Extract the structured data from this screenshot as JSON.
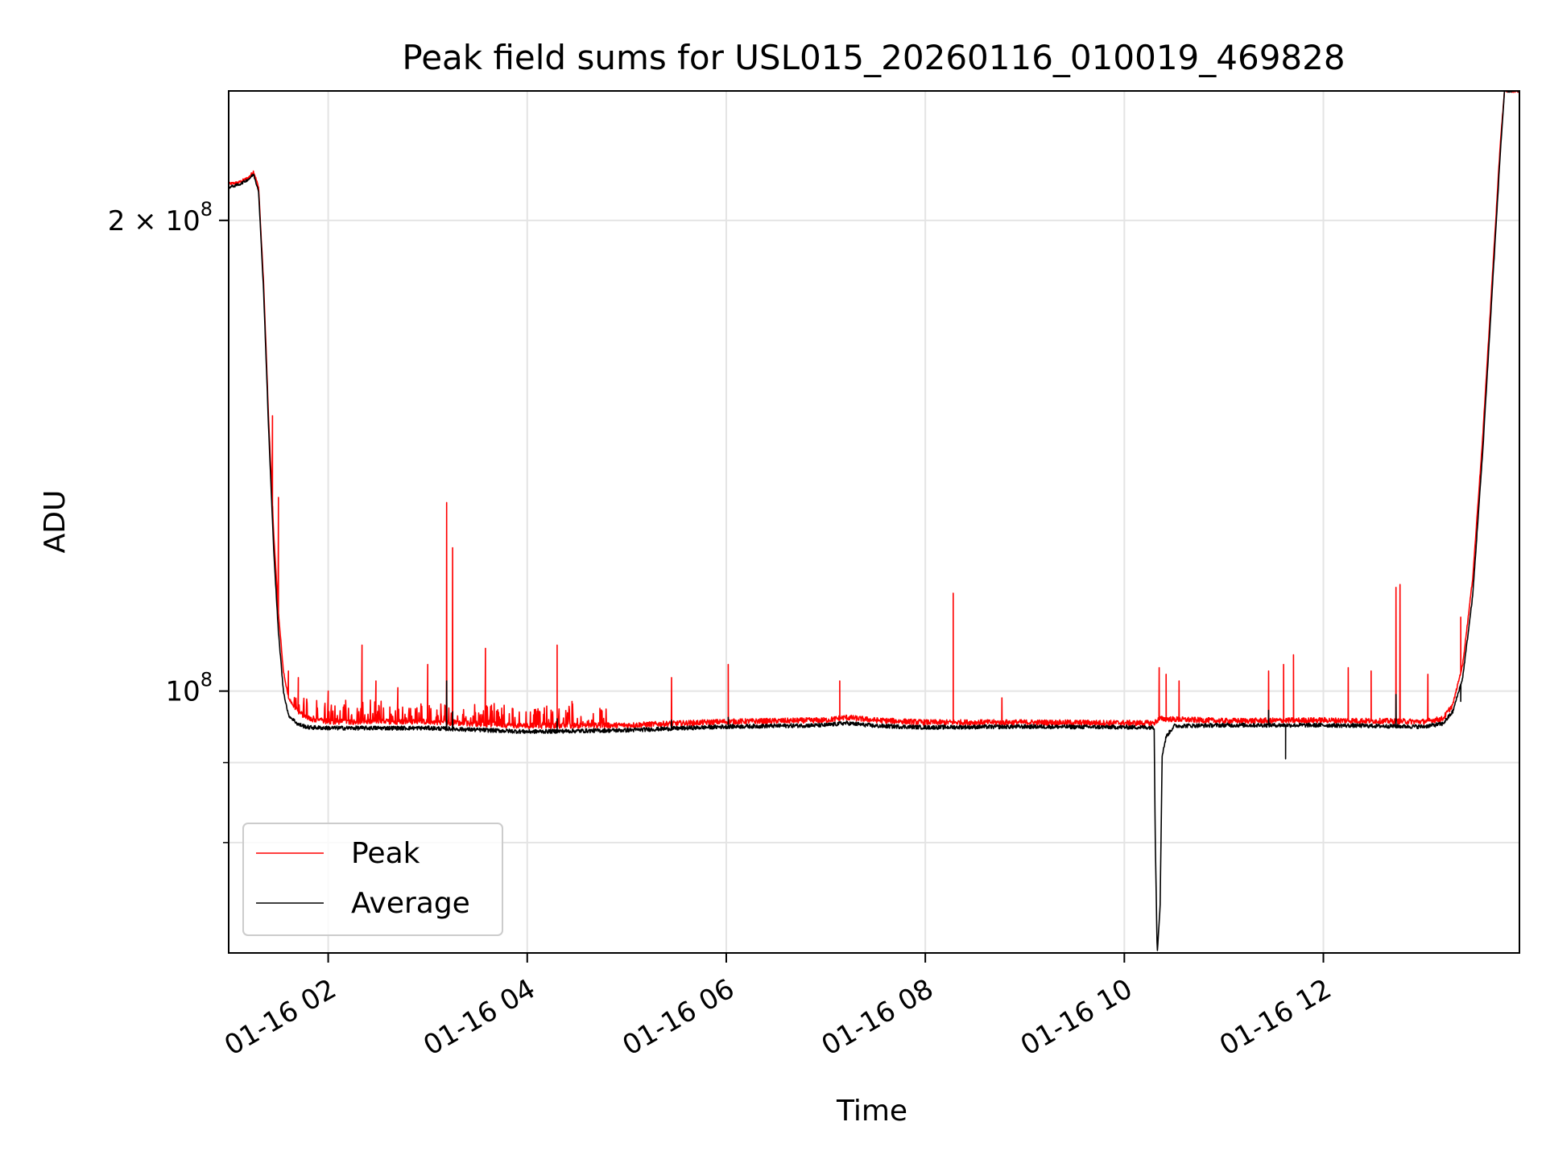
{
  "chart_data": {
    "type": "line",
    "title": "Peak field sums for USL015_20260116_010019_469828",
    "xlabel": "Time",
    "ylabel": "ADU",
    "x_unit": "hour of 2026-01-16",
    "xlim": [
      1.0,
      13.97
    ],
    "ylim": [
      68000000,
      242000000
    ],
    "yscale": "log",
    "grid": true,
    "legend": {
      "placement": "lower-left",
      "entries": [
        "Peak",
        "Average"
      ]
    },
    "x_ticks": [
      {
        "value": 2,
        "label": "01-16 02"
      },
      {
        "value": 4,
        "label": "01-16 04"
      },
      {
        "value": 6,
        "label": "01-16 06"
      },
      {
        "value": 8,
        "label": "01-16 08"
      },
      {
        "value": 10,
        "label": "01-16 10"
      },
      {
        "value": 12,
        "label": "01-16 12"
      }
    ],
    "y_ticks_major": [
      {
        "value": 100000000,
        "base": "10",
        "exp": "8",
        "coef": ""
      },
      {
        "value": 200000000,
        "base": "10",
        "exp": "8",
        "coef": "2 × "
      }
    ],
    "y_ticks_minor": [
      80000000,
      90000000
    ],
    "series": [
      {
        "name": "Peak",
        "color": "#ff0000",
        "base": [
          [
            1.0,
            211000000
          ],
          [
            1.1,
            211500000
          ],
          [
            1.2,
            213000000
          ],
          [
            1.25,
            215000000
          ],
          [
            1.3,
            210000000
          ],
          [
            1.35,
            183000000
          ],
          [
            1.4,
            150000000
          ],
          [
            1.45,
            127000000
          ],
          [
            1.5,
            112000000
          ],
          [
            1.55,
            103000000
          ],
          [
            1.6,
            99000000
          ],
          [
            1.7,
            97000000
          ],
          [
            1.8,
            96000000
          ],
          [
            2.0,
            95600000
          ],
          [
            3.0,
            95600000
          ],
          [
            4.0,
            95000000
          ],
          [
            5.0,
            95100000
          ],
          [
            6.0,
            95600000
          ],
          [
            7.0,
            95800000
          ],
          [
            7.2,
            96200000
          ],
          [
            7.5,
            95800000
          ],
          [
            8.0,
            95500000
          ],
          [
            9.0,
            95500000
          ],
          [
            10.3,
            95400000
          ],
          [
            10.35,
            96000000
          ],
          [
            11.0,
            95700000
          ],
          [
            12.0,
            95800000
          ],
          [
            13.0,
            95600000
          ],
          [
            13.2,
            96000000
          ],
          [
            13.3,
            98000000
          ],
          [
            13.4,
            104000000
          ],
          [
            13.5,
            118000000
          ],
          [
            13.6,
            145000000
          ],
          [
            13.7,
            185000000
          ],
          [
            13.78,
            225000000
          ],
          [
            13.82,
            242000000
          ],
          [
            13.97,
            242000000
          ]
        ],
        "spikes": [
          [
            1.44,
            150000000
          ],
          [
            1.5,
            133000000
          ],
          [
            1.6,
            103000000
          ],
          [
            1.7,
            102000000
          ],
          [
            2.0,
            100000000
          ],
          [
            2.34,
            107000000
          ],
          [
            2.48,
            101500000
          ],
          [
            2.7,
            100500000
          ],
          [
            3.0,
            104000000
          ],
          [
            3.19,
            132000000
          ],
          [
            3.25,
            123500000
          ],
          [
            3.58,
            106500000
          ],
          [
            3.85,
            97500000
          ],
          [
            4.3,
            107000000
          ],
          [
            4.45,
            98500000
          ],
          [
            4.73,
            97500000
          ],
          [
            5.45,
            102000000
          ],
          [
            6.02,
            104000000
          ],
          [
            7.14,
            101500000
          ],
          [
            8.28,
            115500000
          ],
          [
            8.77,
            99000000
          ],
          [
            10.35,
            103500000
          ],
          [
            10.42,
            102500000
          ],
          [
            10.55,
            101500000
          ],
          [
            11.45,
            103000000
          ],
          [
            11.6,
            104000000
          ],
          [
            11.7,
            105500000
          ],
          [
            12.25,
            103500000
          ],
          [
            12.48,
            103000000
          ],
          [
            12.73,
            116500000
          ],
          [
            12.77,
            117000000
          ],
          [
            13.05,
            102500000
          ],
          [
            13.38,
            111500000
          ]
        ]
      },
      {
        "name": "Average",
        "color": "#000000",
        "base": [
          [
            1.0,
            210000000
          ],
          [
            1.1,
            210800000
          ],
          [
            1.2,
            212500000
          ],
          [
            1.25,
            214000000
          ],
          [
            1.3,
            209000000
          ],
          [
            1.35,
            181000000
          ],
          [
            1.4,
            148000000
          ],
          [
            1.45,
            124000000
          ],
          [
            1.5,
            109000000
          ],
          [
            1.55,
            100000000
          ],
          [
            1.6,
            96500000
          ],
          [
            1.7,
            95200000
          ],
          [
            1.8,
            94800000
          ],
          [
            2.0,
            94700000
          ],
          [
            3.0,
            94700000
          ],
          [
            4.0,
            94200000
          ],
          [
            5.0,
            94400000
          ],
          [
            6.0,
            94900000
          ],
          [
            7.0,
            95100000
          ],
          [
            7.2,
            95400000
          ],
          [
            7.5,
            95000000
          ],
          [
            8.0,
            94800000
          ],
          [
            9.0,
            94900000
          ],
          [
            10.3,
            94800000
          ],
          [
            10.31,
            81000000
          ],
          [
            10.33,
            68000000
          ],
          [
            10.36,
            73000000
          ],
          [
            10.38,
            91000000
          ],
          [
            10.42,
            93500000
          ],
          [
            10.5,
            95000000
          ],
          [
            11.0,
            95100000
          ],
          [
            12.0,
            95100000
          ],
          [
            13.0,
            94900000
          ],
          [
            13.2,
            95300000
          ],
          [
            13.3,
            97000000
          ],
          [
            13.4,
            102000000
          ],
          [
            13.5,
            115000000
          ],
          [
            13.6,
            142000000
          ],
          [
            13.7,
            182000000
          ],
          [
            13.78,
            222000000
          ],
          [
            13.82,
            242000000
          ],
          [
            13.97,
            242000000
          ]
        ],
        "spikes": [
          [
            3.19,
            101500000
          ],
          [
            3.25,
            97000000
          ],
          [
            4.3,
            96000000
          ],
          [
            5.45,
            95800000
          ],
          [
            6.02,
            96200000
          ],
          [
            11.45,
            97200000
          ],
          [
            11.62,
            90500000
          ],
          [
            12.73,
            99500000
          ],
          [
            13.38,
            98500000
          ]
        ]
      }
    ]
  }
}
